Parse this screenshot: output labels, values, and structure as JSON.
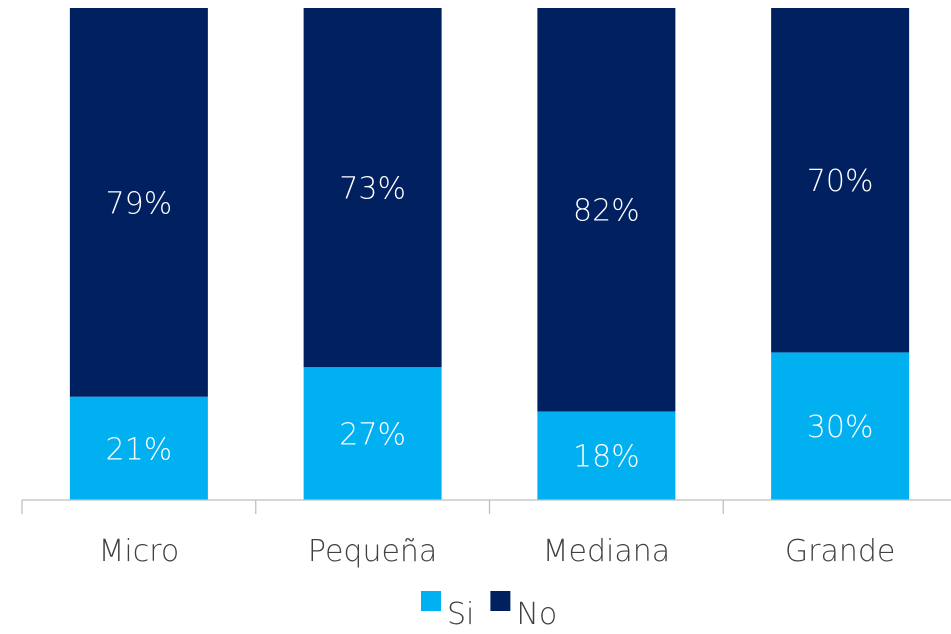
{
  "chart_data": {
    "type": "bar",
    "stacked": true,
    "percent": true,
    "categories": [
      "Micro",
      "Pequeña",
      "Mediana",
      "Grande"
    ],
    "series": [
      {
        "name": "Si",
        "color": "#00b0f0",
        "values": [
          21,
          27,
          18,
          30
        ],
        "labels": [
          "21%",
          "27%",
          "18%",
          "30%"
        ]
      },
      {
        "name": "No",
        "color": "#002060",
        "values": [
          79,
          73,
          82,
          70
        ],
        "labels": [
          "79%",
          "73%",
          "82%",
          "70%"
        ]
      }
    ],
    "ylim": [
      0,
      100
    ],
    "grid": false,
    "legend_position": "bottom"
  }
}
